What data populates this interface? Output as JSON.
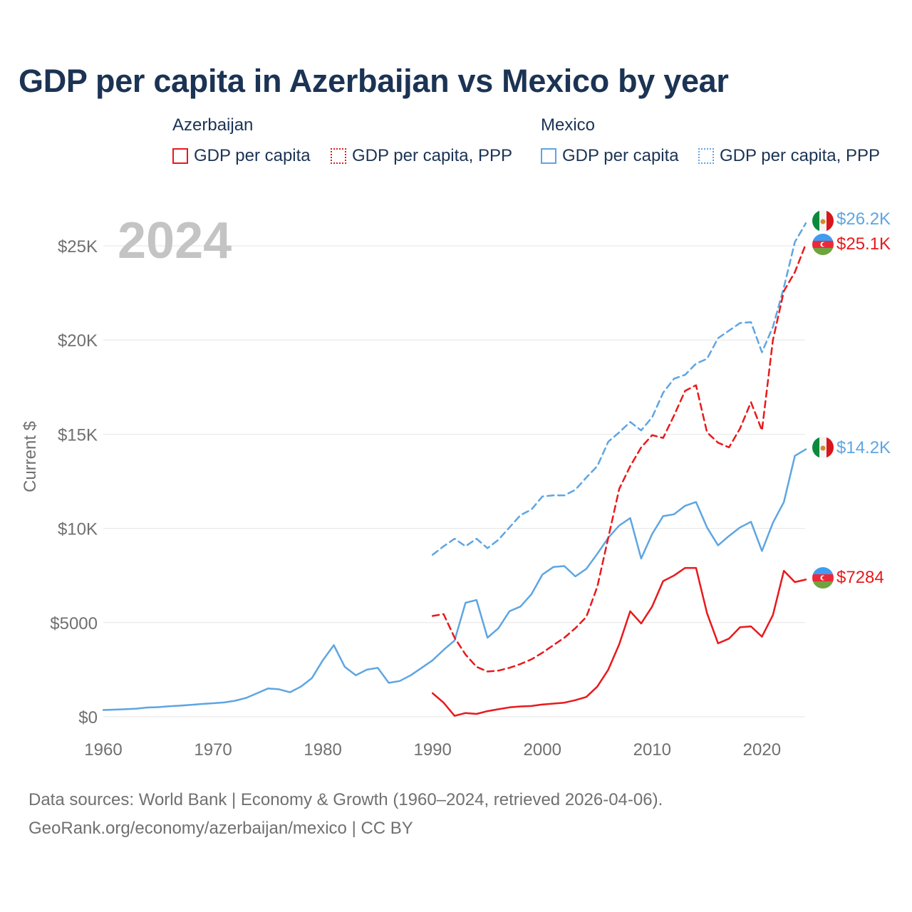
{
  "chart_data": {
    "type": "line",
    "title": "GDP per capita in Azerbaijan vs Mexico by year",
    "year_label": "2024",
    "ylabel": "Current $",
    "xlabel": "",
    "xlim": [
      1960,
      2024
    ],
    "ylim": [
      0,
      27000
    ],
    "x_ticks": [
      1960,
      1970,
      1980,
      1990,
      2000,
      2010,
      2020
    ],
    "x_tick_labels": [
      "1960",
      "1970",
      "1980",
      "1990",
      "2000",
      "2010",
      "2020"
    ],
    "y_ticks": [
      0,
      5000,
      10000,
      15000,
      20000,
      25000
    ],
    "y_tick_labels": [
      "$0",
      "$5000",
      "$10K",
      "$15K",
      "$20K",
      "$25K"
    ],
    "grid": true,
    "legend": {
      "groups": [
        {
          "title": "Azerbaijan",
          "items": [
            "GDP per capita",
            "GDP per capita, PPP"
          ]
        },
        {
          "title": "Mexico",
          "items": [
            "GDP per capita",
            "GDP per capita, PPP"
          ]
        }
      ]
    },
    "series": [
      {
        "name": "Mexico GDP per capita",
        "country": "Mexico",
        "style": "solid",
        "color": "#5ea5e3",
        "end_label": "$14.2K",
        "x": [
          1960,
          1961,
          1962,
          1963,
          1964,
          1965,
          1966,
          1967,
          1968,
          1969,
          1970,
          1971,
          1972,
          1973,
          1974,
          1975,
          1976,
          1977,
          1978,
          1979,
          1980,
          1981,
          1982,
          1983,
          1984,
          1985,
          1986,
          1987,
          1988,
          1989,
          1990,
          1991,
          1992,
          1993,
          1994,
          1995,
          1996,
          1997,
          1998,
          1999,
          2000,
          2001,
          2002,
          2003,
          2004,
          2005,
          2006,
          2007,
          2008,
          2009,
          2010,
          2011,
          2012,
          2013,
          2014,
          2015,
          2016,
          2017,
          2018,
          2019,
          2020,
          2021,
          2022,
          2023,
          2024
        ],
        "values": [
          360,
          380,
          400,
          430,
          490,
          510,
          560,
          590,
          630,
          680,
          720,
          760,
          850,
          1000,
          1250,
          1500,
          1460,
          1300,
          1600,
          2050,
          3000,
          3800,
          2650,
          2200,
          2500,
          2600,
          1800,
          1900,
          2200,
          2600,
          3000,
          3550,
          4050,
          6050,
          6200,
          4200,
          4700,
          5600,
          5850,
          6500,
          7550,
          7950,
          8000,
          7450,
          7850,
          8650,
          9500,
          10150,
          10550,
          8400,
          9700,
          10650,
          10750,
          11200,
          11400,
          10050,
          9100,
          9600,
          10050,
          10350,
          8800,
          10300,
          11400,
          13850,
          14200
        ]
      },
      {
        "name": "Mexico GDP per capita, PPP",
        "country": "Mexico",
        "style": "dashed",
        "color": "#5ea5e3",
        "end_label": "$26.2K",
        "x": [
          1990,
          1991,
          1992,
          1993,
          1994,
          1995,
          1996,
          1997,
          1998,
          1999,
          2000,
          2001,
          2002,
          2003,
          2004,
          2005,
          2006,
          2007,
          2008,
          2009,
          2010,
          2011,
          2012,
          2013,
          2014,
          2015,
          2016,
          2017,
          2018,
          2019,
          2020,
          2021,
          2022,
          2023,
          2024
        ],
        "values": [
          8600,
          9050,
          9450,
          9050,
          9450,
          8950,
          9400,
          10050,
          10700,
          11000,
          11700,
          11750,
          11750,
          12050,
          12700,
          13300,
          14600,
          15100,
          15650,
          15200,
          15900,
          17200,
          17950,
          18150,
          18750,
          19000,
          20100,
          20500,
          20900,
          20950,
          19350,
          20700,
          22800,
          25200,
          26200
        ]
      },
      {
        "name": "Azerbaijan GDP per capita",
        "country": "Azerbaijan",
        "style": "solid",
        "color": "#e8191c",
        "end_label": "$7284",
        "x": [
          1990,
          1991,
          1992,
          1993,
          1994,
          1995,
          1996,
          1997,
          1998,
          1999,
          2000,
          2001,
          2002,
          2003,
          2004,
          2005,
          2006,
          2007,
          2008,
          2009,
          2010,
          2011,
          2012,
          2013,
          2014,
          2015,
          2016,
          2017,
          2018,
          2019,
          2020,
          2021,
          2022,
          2023,
          2024
        ],
        "values": [
          1250,
          750,
          50,
          200,
          150,
          300,
          400,
          500,
          550,
          570,
          650,
          700,
          750,
          880,
          1050,
          1600,
          2500,
          3850,
          5600,
          4950,
          5850,
          7200,
          7500,
          7900,
          7900,
          5500,
          3900,
          4150,
          4750,
          4800,
          4250,
          5400,
          7750,
          7150,
          7284
        ]
      },
      {
        "name": "Azerbaijan GDP per capita, PPP",
        "country": "Azerbaijan",
        "style": "dashed",
        "color": "#e8191c",
        "end_label": "$25.1K",
        "x": [
          1990,
          1991,
          1992,
          1993,
          1994,
          1995,
          1996,
          1997,
          1998,
          1999,
          2000,
          2001,
          2002,
          2003,
          2004,
          2005,
          2006,
          2007,
          2008,
          2009,
          2010,
          2011,
          2012,
          2013,
          2014,
          2015,
          2016,
          2017,
          2018,
          2019,
          2020,
          2021,
          2022,
          2023,
          2024
        ],
        "values": [
          5350,
          5450,
          4200,
          3300,
          2650,
          2400,
          2450,
          2600,
          2800,
          3050,
          3400,
          3800,
          4200,
          4700,
          5300,
          6900,
          9500,
          12100,
          13300,
          14300,
          14950,
          14800,
          16000,
          17300,
          17600,
          15100,
          14550,
          14300,
          15300,
          16700,
          15200,
          20000,
          22600,
          23600,
          25100
        ]
      }
    ]
  },
  "footer": {
    "line1": "Data sources: World Bank | Economy & Growth (1960–2024, retrieved 2026-04-06).",
    "line2": "GeoRank.org/economy/azerbaijan/mexico | CC BY"
  }
}
